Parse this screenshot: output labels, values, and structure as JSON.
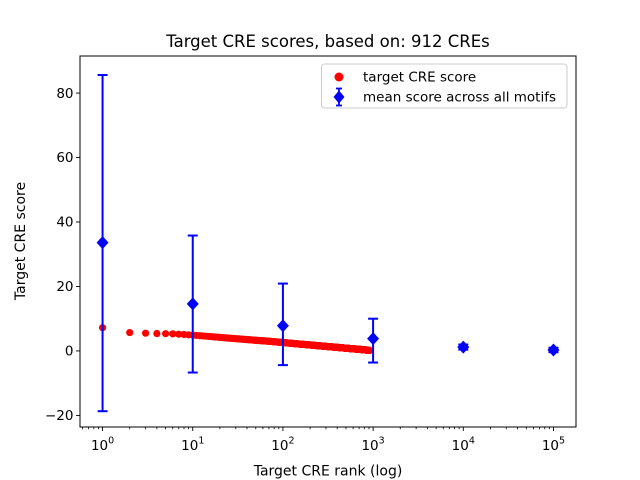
{
  "figure": {
    "background": "#ffffff",
    "accent_red": "#ff0000",
    "accent_blue": "#0000ff"
  },
  "chart_data": {
    "type": "scatter",
    "title": "Target CRE scores, based on: 912 CREs",
    "xlabel": "Target CRE rank (log)",
    "ylabel": "Target CRE score",
    "x_scale": "log",
    "xlim": [
      0.562,
      177828
    ],
    "ylim": [
      -23.6,
      91.5
    ],
    "grid": false,
    "legend_position": "upper right",
    "x_ticks": [
      {
        "value": 1,
        "base": "10",
        "exp": "0"
      },
      {
        "value": 10,
        "base": "10",
        "exp": "1"
      },
      {
        "value": 100,
        "base": "10",
        "exp": "2"
      },
      {
        "value": 1000,
        "base": "10",
        "exp": "3"
      },
      {
        "value": 10000,
        "base": "10",
        "exp": "4"
      },
      {
        "value": 100000,
        "base": "10",
        "exp": "5"
      }
    ],
    "y_ticks": [
      {
        "value": -20,
        "label": "−20"
      },
      {
        "value": 0,
        "label": "0"
      },
      {
        "value": 20,
        "label": "20"
      },
      {
        "value": 40,
        "label": "40"
      },
      {
        "value": 60,
        "label": "60"
      },
      {
        "value": 80,
        "label": "80"
      }
    ],
    "series": [
      {
        "name": "target CRE score",
        "marker": "circle",
        "color": "#ff0000",
        "n_points": 912,
        "rank_range": [
          1,
          912
        ],
        "note": "one dot per integer rank 1..912; values below are samples, interpolate linearly vs log10(rank)",
        "points_sampled": [
          [
            1,
            7.2
          ],
          [
            2,
            5.7
          ],
          [
            3,
            5.5
          ],
          [
            4,
            5.4
          ],
          [
            5,
            5.35
          ],
          [
            6,
            5.3
          ],
          [
            8,
            5.1
          ],
          [
            10,
            4.9
          ],
          [
            15,
            4.5
          ],
          [
            20,
            4.2
          ],
          [
            30,
            3.8
          ],
          [
            50,
            3.3
          ],
          [
            70,
            3.0
          ],
          [
            100,
            2.6
          ],
          [
            150,
            2.15
          ],
          [
            200,
            1.85
          ],
          [
            300,
            1.4
          ],
          [
            400,
            1.1
          ],
          [
            500,
            0.85
          ],
          [
            600,
            0.65
          ],
          [
            700,
            0.5
          ],
          [
            800,
            0.35
          ],
          [
            912,
            0.15
          ]
        ]
      },
      {
        "name": "mean score across all motifs",
        "marker": "diamond",
        "color": "#0000ff",
        "error_bars": true,
        "points": [
          {
            "x": 1,
            "y": 33.6,
            "lo": -18.7,
            "hi": 85.6
          },
          {
            "x": 10,
            "y": 14.6,
            "lo": -6.7,
            "hi": 35.8
          },
          {
            "x": 100,
            "y": 7.8,
            "lo": -4.4,
            "hi": 20.9
          },
          {
            "x": 1000,
            "y": 3.8,
            "lo": -3.6,
            "hi": 10.0
          },
          {
            "x": 10000,
            "y": 1.2,
            "lo": 0.4,
            "hi": 2.0
          },
          {
            "x": 100000,
            "y": 0.3,
            "lo": -0.4,
            "hi": 1.0
          }
        ]
      }
    ]
  }
}
